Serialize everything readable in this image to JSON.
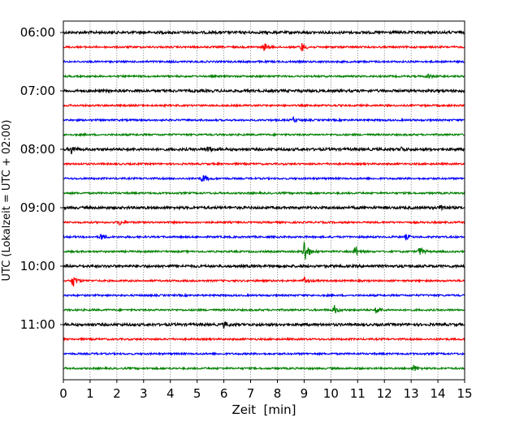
{
  "chart_data": {
    "type": "line",
    "chart_kind": "helicorder",
    "xlabel": "Zeit  [min]",
    "ylabel": "UTC (Lokalzeit = UTC + 02:00)",
    "xlim": [
      0,
      15
    ],
    "x_ticks": [
      0,
      1,
      2,
      3,
      4,
      5,
      6,
      7,
      8,
      9,
      10,
      11,
      12,
      13,
      14,
      15
    ],
    "y_tick_labels": [
      "06:00",
      "07:00",
      "08:00",
      "09:00",
      "10:00",
      "11:00"
    ],
    "row_minutes": 15,
    "row_count": 24,
    "first_row": "06:00",
    "grid": "vertical dotted lines at each minute",
    "row_color_cycle": [
      "#000000",
      "#ff0000",
      "#0000ff",
      "#008000"
    ],
    "events": [
      {
        "row": 1,
        "minute": 7.5,
        "amplitude": 0.55
      },
      {
        "row": 1,
        "minute": 8.9,
        "amplitude": 0.65
      },
      {
        "row": 3,
        "minute": 13.6,
        "amplitude": 0.4
      },
      {
        "row": 6,
        "minute": 8.6,
        "amplitude": 0.35
      },
      {
        "row": 8,
        "minute": 0.3,
        "amplitude": 0.6
      },
      {
        "row": 8,
        "minute": 5.4,
        "amplitude": 0.45
      },
      {
        "row": 8,
        "minute": 12.6,
        "amplitude": 0.35
      },
      {
        "row": 10,
        "minute": 5.2,
        "amplitude": 0.7
      },
      {
        "row": 12,
        "minute": 14.1,
        "amplitude": 0.55
      },
      {
        "row": 13,
        "minute": 2.1,
        "amplitude": 0.35
      },
      {
        "row": 14,
        "minute": 1.4,
        "amplitude": 0.5
      },
      {
        "row": 14,
        "minute": 12.8,
        "amplitude": 0.35
      },
      {
        "row": 15,
        "minute": 9.0,
        "amplitude": 2.0
      },
      {
        "row": 15,
        "minute": 10.9,
        "amplitude": 0.9
      },
      {
        "row": 15,
        "minute": 13.3,
        "amplitude": 0.7
      },
      {
        "row": 17,
        "minute": 0.35,
        "amplitude": 1.0
      },
      {
        "row": 17,
        "minute": 9.0,
        "amplitude": 0.55
      },
      {
        "row": 19,
        "minute": 10.1,
        "amplitude": 0.75
      },
      {
        "row": 19,
        "minute": 11.7,
        "amplitude": 0.65
      },
      {
        "row": 20,
        "minute": 6.0,
        "amplitude": 0.4
      },
      {
        "row": 23,
        "minute": 13.1,
        "amplitude": 0.45
      }
    ]
  }
}
